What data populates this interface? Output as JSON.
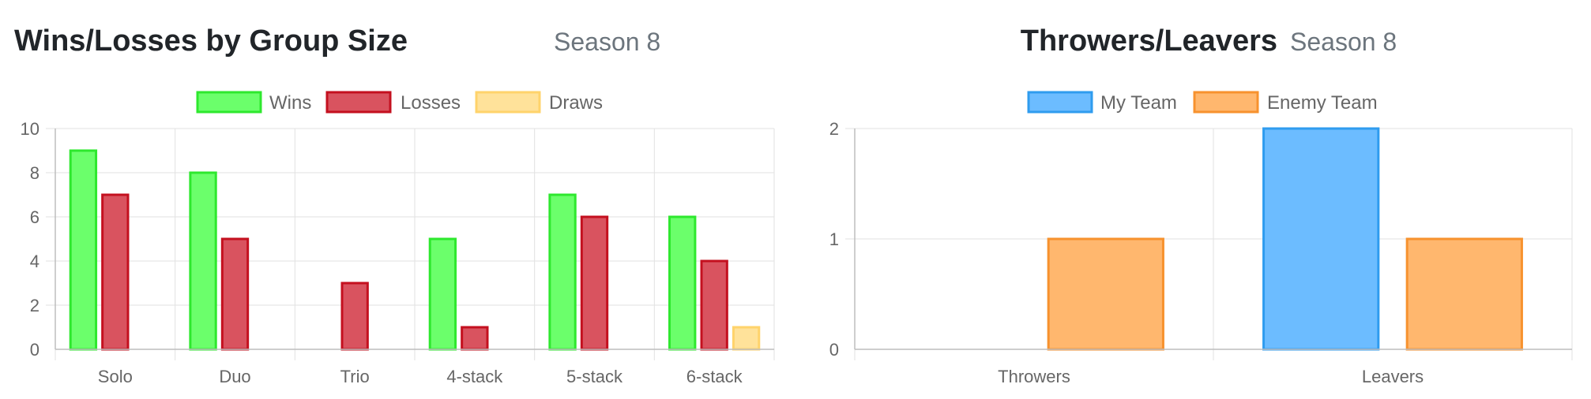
{
  "chart_data": [
    {
      "type": "bar",
      "title": "Wins/Losses by Group Size",
      "subtitle": "Season 8",
      "categories": [
        "Solo",
        "Duo",
        "Trio",
        "4-stack",
        "5-stack",
        "6-stack"
      ],
      "series": [
        {
          "name": "Wins",
          "values": [
            9,
            8,
            0,
            5,
            7,
            6
          ],
          "fill": "#6bff6b",
          "stroke": "#2ee82e"
        },
        {
          "name": "Losses",
          "values": [
            7,
            5,
            3,
            1,
            6,
            4
          ],
          "fill": "#d9535f",
          "stroke": "#c4101f"
        },
        {
          "name": "Draws",
          "values": [
            0,
            0,
            0,
            0,
            0,
            1
          ],
          "fill": "#ffe29a",
          "stroke": "#ffd36b"
        }
      ],
      "ylim": [
        0,
        10
      ],
      "yticks": [
        0,
        2,
        4,
        6,
        8,
        10
      ],
      "grid": true,
      "legend": "top-center"
    },
    {
      "type": "bar",
      "title": "Throwers/Leavers",
      "subtitle": "Season 8",
      "categories": [
        "Throwers",
        "Leavers"
      ],
      "series": [
        {
          "name": "My Team",
          "values": [
            0,
            2
          ],
          "fill": "#6cbcff",
          "stroke": "#2f9cef"
        },
        {
          "name": "Enemy Team",
          "values": [
            1,
            1
          ],
          "fill": "#ffb76e",
          "stroke": "#f7922e"
        }
      ],
      "ylim": [
        0,
        2
      ],
      "yticks": [
        0,
        1,
        2
      ],
      "grid": true,
      "legend": "top-center"
    }
  ]
}
